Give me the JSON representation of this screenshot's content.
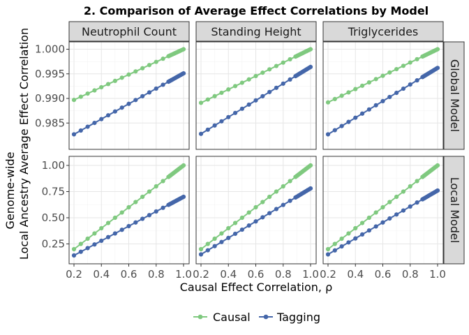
{
  "chart_data": {
    "type": "line",
    "title": "2. Comparison of Average Effect Correlations by Model",
    "xlabel": "Causal Effect Correlation, ρ",
    "ylabel_lines": [
      "Genome-wide",
      "Local Ancestry Average Effect Correlation"
    ],
    "col_facets": [
      "Neutrophil Count",
      "Standing Height",
      "Triglycerides"
    ],
    "row_facets": [
      "Global Model",
      "Local Model"
    ],
    "x": [
      0.2,
      0.25,
      0.3,
      0.35,
      0.4,
      0.45,
      0.5,
      0.55,
      0.6,
      0.65,
      0.7,
      0.75,
      0.8,
      0.85,
      0.89,
      0.9,
      0.91,
      0.92,
      0.93,
      0.94,
      0.95,
      0.96,
      0.97,
      0.98,
      0.99,
      1.0
    ],
    "xlim": [
      0.2,
      1.0
    ],
    "x_ticks": [
      "0.2",
      "0.4",
      "0.6",
      "0.8",
      "1.0"
    ],
    "x_tick_values": [
      0.2,
      0.4,
      0.6,
      0.8,
      1.0
    ],
    "rows": [
      {
        "ylim": [
          0.9805,
          1.0005
        ],
        "y_ticks": [
          "0.985",
          "0.990",
          "0.995",
          "1.000"
        ],
        "y_tick_values": [
          0.985,
          0.99,
          0.995,
          1.0
        ],
        "panels": [
          {
            "causal": [
              0.9897,
              1.0
            ],
            "tagging": [
              0.9827,
              0.9951
            ]
          },
          {
            "causal": [
              0.9891,
              1.0
            ],
            "tagging": [
              0.9828,
              0.9964
            ]
          },
          {
            "causal": [
              0.9892,
              1.0
            ],
            "tagging": [
              0.9827,
              0.9962
            ]
          }
        ]
      },
      {
        "ylim": [
          0.1,
          1.04
        ],
        "y_ticks": [
          "0.25",
          "0.50",
          "0.75",
          "1.00"
        ],
        "y_tick_values": [
          0.25,
          0.5,
          0.75,
          1.0
        ],
        "panels": [
          {
            "causal": [
              0.2,
              1.0
            ],
            "tagging": [
              0.14,
              0.7
            ]
          },
          {
            "causal": [
              0.2,
              1.0
            ],
            "tagging": [
              0.15,
              0.78
            ]
          },
          {
            "causal": [
              0.2,
              1.0
            ],
            "tagging": [
              0.15,
              0.76
            ]
          }
        ]
      }
    ],
    "series": [
      {
        "name": "Causal",
        "color": "#7fc97f"
      },
      {
        "name": "Tagging",
        "color": "#4466a9"
      }
    ],
    "legend_position": "bottom",
    "grid": true
  }
}
